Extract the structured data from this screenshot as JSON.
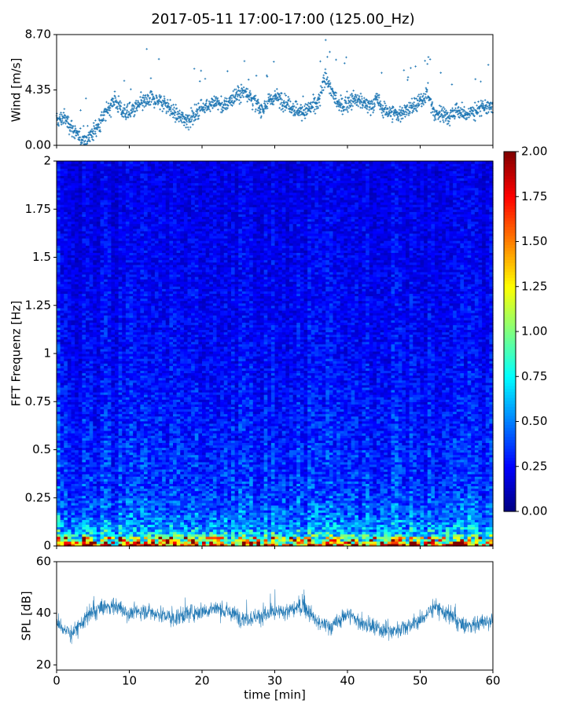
{
  "title": "2017-05-11 17:00-17:00 (125.00_Hz)",
  "chart_data": [
    {
      "panel": "wind",
      "type": "scatter",
      "ylabel": "Wind [m/s]",
      "xlim": [
        0,
        60
      ],
      "ylim": [
        0,
        8.7
      ],
      "yticks": [
        0.0,
        4.35,
        8.7
      ],
      "ytick_labels": [
        "0.00",
        "4.35",
        "8.70"
      ],
      "series": [
        {
          "values": [
            {
              "x": 0,
              "y": 1.9
            },
            {
              "x": 1,
              "y": 2.2
            },
            {
              "x": 2,
              "y": 1.5
            },
            {
              "x": 3,
              "y": 0.6
            },
            {
              "x": 4,
              "y": 0.5
            },
            {
              "x": 5,
              "y": 1.0
            },
            {
              "x": 6,
              "y": 1.8
            },
            {
              "x": 7,
              "y": 2.8
            },
            {
              "x": 8,
              "y": 3.6
            },
            {
              "x": 9,
              "y": 2.7
            },
            {
              "x": 10,
              "y": 2.5
            },
            {
              "x": 11,
              "y": 3.0
            },
            {
              "x": 12,
              "y": 3.4
            },
            {
              "x": 13,
              "y": 3.6
            },
            {
              "x": 14,
              "y": 3.5
            },
            {
              "x": 15,
              "y": 3.3
            },
            {
              "x": 16,
              "y": 2.6
            },
            {
              "x": 17,
              "y": 2.2
            },
            {
              "x": 18,
              "y": 2.0
            },
            {
              "x": 19,
              "y": 2.4
            },
            {
              "x": 20,
              "y": 3.0
            },
            {
              "x": 21,
              "y": 3.2
            },
            {
              "x": 22,
              "y": 3.4
            },
            {
              "x": 23,
              "y": 3.0
            },
            {
              "x": 24,
              "y": 3.6
            },
            {
              "x": 25,
              "y": 4.0
            },
            {
              "x": 26,
              "y": 4.3
            },
            {
              "x": 27,
              "y": 3.6
            },
            {
              "x": 28,
              "y": 2.8
            },
            {
              "x": 29,
              "y": 3.3
            },
            {
              "x": 30,
              "y": 3.8
            },
            {
              "x": 31,
              "y": 3.6
            },
            {
              "x": 32,
              "y": 3.2
            },
            {
              "x": 33,
              "y": 2.8
            },
            {
              "x": 34,
              "y": 2.6
            },
            {
              "x": 35,
              "y": 3.0
            },
            {
              "x": 36,
              "y": 3.3
            },
            {
              "x": 37,
              "y": 5.5
            },
            {
              "x": 38,
              "y": 4.0
            },
            {
              "x": 39,
              "y": 3.0
            },
            {
              "x": 40,
              "y": 3.4
            },
            {
              "x": 41,
              "y": 3.6
            },
            {
              "x": 42,
              "y": 3.4
            },
            {
              "x": 43,
              "y": 3.0
            },
            {
              "x": 44,
              "y": 3.6
            },
            {
              "x": 45,
              "y": 2.8
            },
            {
              "x": 46,
              "y": 2.6
            },
            {
              "x": 47,
              "y": 2.4
            },
            {
              "x": 48,
              "y": 2.8
            },
            {
              "x": 49,
              "y": 3.0
            },
            {
              "x": 50,
              "y": 3.4
            },
            {
              "x": 51,
              "y": 4.2
            },
            {
              "x": 52,
              "y": 2.4
            },
            {
              "x": 53,
              "y": 2.6
            },
            {
              "x": 54,
              "y": 2.2
            },
            {
              "x": 55,
              "y": 2.8
            },
            {
              "x": 56,
              "y": 2.4
            },
            {
              "x": 57,
              "y": 2.6
            },
            {
              "x": 58,
              "y": 2.8
            },
            {
              "x": 59,
              "y": 3.0
            },
            {
              "x": 60,
              "y": 3.0
            }
          ]
        }
      ],
      "marker": "+",
      "color": "#1f77b4"
    },
    {
      "panel": "spectrogram",
      "type": "heatmap",
      "ylabel": "FFT Frequenz [Hz]",
      "xlim": [
        0,
        60
      ],
      "ylim": [
        0,
        2
      ],
      "yticks": [
        0,
        0.25,
        0.5,
        0.75,
        1,
        1.25,
        1.5,
        1.75,
        2
      ],
      "ytick_labels": [
        "0",
        "0.25",
        "0.5",
        "0.75",
        "1",
        "1.25",
        "1.5",
        "1.75",
        "2"
      ],
      "colormap": "jet",
      "clim": [
        0,
        2
      ],
      "colorbar_ticks": [
        "0.00",
        "0.25",
        "0.50",
        "0.75",
        "1.00",
        "1.25",
        "1.50",
        "1.75",
        "2.00"
      ],
      "level_profile": [
        {
          "freq": 0.0,
          "level": 1.6
        },
        {
          "freq": 0.03,
          "level": 0.9
        },
        {
          "freq": 0.08,
          "level": 0.6
        },
        {
          "freq": 0.15,
          "level": 0.45
        },
        {
          "freq": 0.3,
          "level": 0.35
        },
        {
          "freq": 0.6,
          "level": 0.3
        },
        {
          "freq": 1.0,
          "level": 0.25
        },
        {
          "freq": 2.0,
          "level": 0.2
        }
      ]
    },
    {
      "panel": "spl",
      "type": "line",
      "ylabel": "SPL [dB]",
      "xlabel": "time [min]",
      "xlim": [
        0,
        60
      ],
      "ylim": [
        18,
        60
      ],
      "yticks": [
        20,
        40,
        60
      ],
      "ytick_labels": [
        "20",
        "40",
        "60"
      ],
      "xticks": [
        0,
        10,
        20,
        30,
        40,
        50,
        60
      ],
      "xtick_labels": [
        "0",
        "10",
        "20",
        "30",
        "40",
        "50",
        "60"
      ],
      "series": [
        {
          "values": [
            {
              "x": 0,
              "y": 36
            },
            {
              "x": 2,
              "y": 32
            },
            {
              "x": 4,
              "y": 38
            },
            {
              "x": 6,
              "y": 42
            },
            {
              "x": 8,
              "y": 43
            },
            {
              "x": 10,
              "y": 40
            },
            {
              "x": 12,
              "y": 41
            },
            {
              "x": 14,
              "y": 40
            },
            {
              "x": 16,
              "y": 38
            },
            {
              "x": 18,
              "y": 40
            },
            {
              "x": 20,
              "y": 41
            },
            {
              "x": 22,
              "y": 42
            },
            {
              "x": 24,
              "y": 40
            },
            {
              "x": 26,
              "y": 38
            },
            {
              "x": 28,
              "y": 39
            },
            {
              "x": 30,
              "y": 40
            },
            {
              "x": 32,
              "y": 41
            },
            {
              "x": 34,
              "y": 43
            },
            {
              "x": 36,
              "y": 36
            },
            {
              "x": 38,
              "y": 35
            },
            {
              "x": 40,
              "y": 40
            },
            {
              "x": 42,
              "y": 36
            },
            {
              "x": 44,
              "y": 34
            },
            {
              "x": 46,
              "y": 33
            },
            {
              "x": 48,
              "y": 35
            },
            {
              "x": 50,
              "y": 37
            },
            {
              "x": 52,
              "y": 43
            },
            {
              "x": 54,
              "y": 39
            },
            {
              "x": 56,
              "y": 35
            },
            {
              "x": 58,
              "y": 36
            },
            {
              "x": 60,
              "y": 38
            }
          ]
        }
      ],
      "color": "#1f77b4"
    }
  ]
}
